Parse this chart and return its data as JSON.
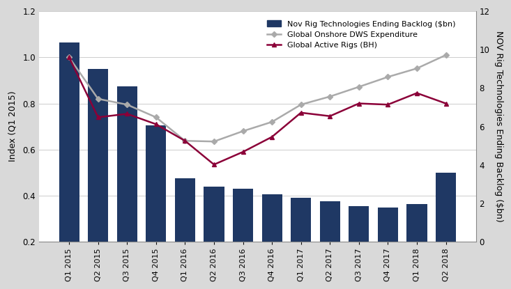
{
  "quarters": [
    "Q1 2015",
    "Q2 2015",
    "Q3 2015",
    "Q4 2015",
    "Q1 2016",
    "Q2 2016",
    "Q3 2016",
    "Q4 2016",
    "Q1 2017",
    "Q2 2017",
    "Q3 2017",
    "Q4 2017",
    "Q1 2018",
    "Q2 2018"
  ],
  "backlog_index": [
    1.065,
    0.95,
    0.875,
    0.705,
    0.475,
    0.44,
    0.43,
    0.405,
    0.39,
    0.375,
    0.355,
    0.348,
    0.365,
    0.5
  ],
  "dws_index": [
    1.0,
    0.82,
    0.795,
    0.74,
    0.638,
    0.635,
    0.68,
    0.72,
    0.795,
    0.83,
    0.872,
    0.915,
    0.952,
    1.01
  ],
  "rigs_index": [
    1.0,
    0.74,
    0.755,
    0.71,
    0.638,
    0.535,
    0.59,
    0.655,
    0.76,
    0.745,
    0.8,
    0.795,
    0.845,
    0.8
  ],
  "bar_color": "#1f3864",
  "dws_color": "#aaaaaa",
  "rigs_color": "#8b0038",
  "ylim_left": [
    0.2,
    1.2
  ],
  "ylim_right": [
    0,
    12
  ],
  "yticks_left": [
    0.2,
    0.4,
    0.6,
    0.8,
    1.0,
    1.2
  ],
  "yticks_right": [
    0,
    2,
    4,
    6,
    8,
    10,
    12
  ],
  "ylabel_left": "Index (Q1 2015)",
  "ylabel_right": "NOV Rig Technologies Ending Backlog ($bn)",
  "legend_labels": [
    "Nov Rig Technologies Ending Backlog ($bn)",
    "Global Onshore DWS Expenditure",
    "Global Active Rigs (BH)"
  ],
  "plot_bg": "#ffffff",
  "fig_bg": "#d9d9d9"
}
